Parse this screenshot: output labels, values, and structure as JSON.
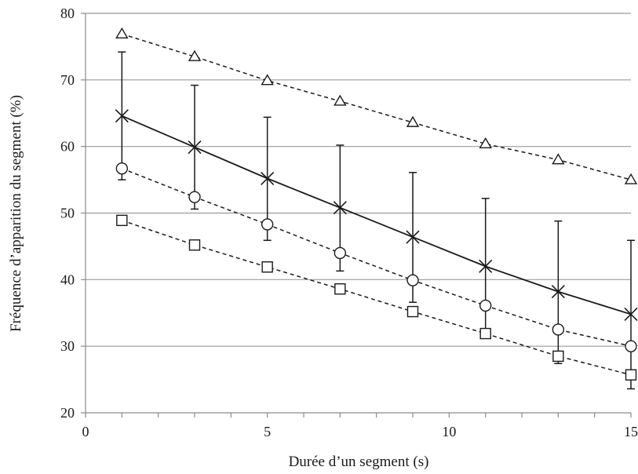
{
  "chart_data": {
    "type": "line",
    "xlabel": "Durée d’un segment (s)",
    "ylabel": "Fréquence d’apparition du segment (%)",
    "xlim": [
      0,
      15
    ],
    "ylim": [
      20,
      80
    ],
    "x_ticks": [
      0,
      5,
      10,
      15
    ],
    "x_minor_ticks": [
      0,
      1,
      2,
      3,
      4,
      5,
      6,
      7,
      8,
      9,
      10,
      11,
      12,
      13,
      14,
      15
    ],
    "y_ticks": [
      20,
      30,
      40,
      50,
      60,
      70,
      80
    ],
    "grid": "horizontal",
    "legend": "none",
    "x": [
      1,
      3,
      5,
      7,
      9,
      11,
      13,
      15
    ],
    "series": [
      {
        "marker": "cross",
        "line": "solid",
        "values": [
          64.6,
          59.9,
          55.2,
          50.8,
          46.4,
          42.0,
          38.2,
          34.8
        ],
        "error_upper": [
          74.2,
          69.2,
          64.4,
          60.2,
          56.1,
          52.2,
          48.8,
          45.9
        ],
        "error_lower": [
          55.0,
          50.6,
          45.9,
          41.3,
          36.6,
          32.0,
          27.4,
          23.6
        ]
      },
      {
        "marker": "triangle",
        "line": "dashed",
        "values": [
          76.9,
          73.5,
          69.9,
          66.8,
          63.6,
          60.4,
          58.0,
          55.0
        ]
      },
      {
        "marker": "circle",
        "line": "dashed",
        "values": [
          56.7,
          52.4,
          48.3,
          44.0,
          39.9,
          36.1,
          32.5,
          30.0
        ]
      },
      {
        "marker": "square",
        "line": "dashed",
        "values": [
          48.9,
          45.2,
          41.9,
          38.6,
          35.2,
          31.9,
          28.5,
          25.7
        ]
      }
    ]
  }
}
